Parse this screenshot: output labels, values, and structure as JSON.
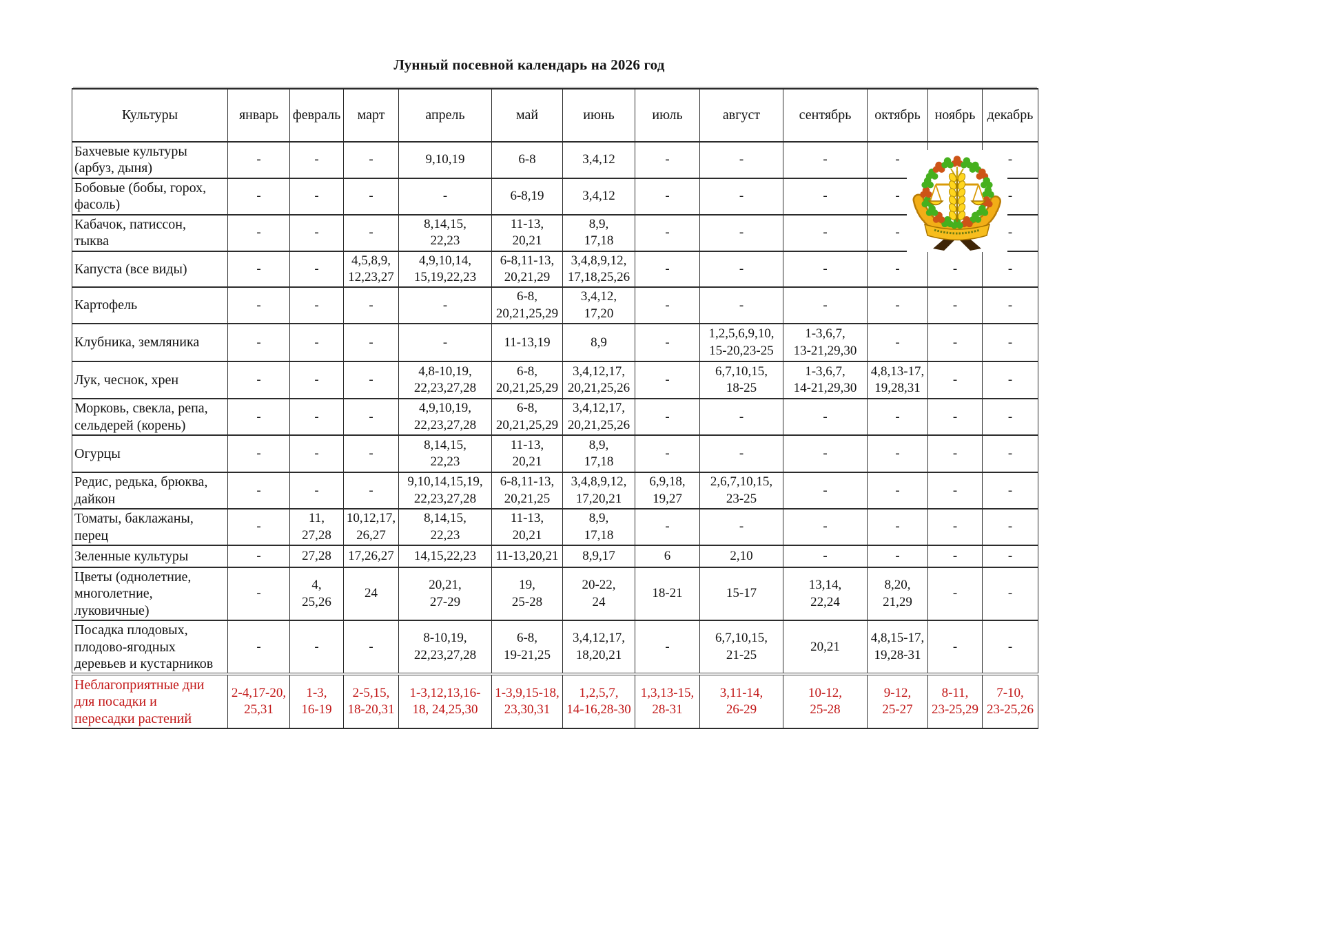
{
  "title": "Лунный посевной календарь на 2026 год",
  "table": {
    "columns": [
      "Культуры",
      "январь",
      "февраль",
      "март",
      "апрель",
      "май",
      "июнь",
      "июль",
      "август",
      "сентябрь",
      "октябрь",
      "ноябрь",
      "декабрь"
    ],
    "rows": [
      {
        "label": "Бахчевые культуры\n(арбуз, дыня)",
        "cells": [
          "-",
          "-",
          "-",
          "9,10,19",
          "6-8",
          "3,4,12",
          "-",
          "-",
          "-",
          "-",
          "-",
          "-"
        ]
      },
      {
        "label": "Бобовые (бобы, горох,\nфасоль)",
        "cells": [
          "-",
          "-",
          "-",
          "-",
          "6-8,19",
          "3,4,12",
          "-",
          "-",
          "-",
          "-",
          "-",
          "-"
        ]
      },
      {
        "label": "Кабачок, патиссон,\nтыква",
        "cells": [
          "-",
          "-",
          "-",
          "8,14,15,\n22,23",
          "11-13,\n20,21",
          "8,9,\n17,18",
          "-",
          "-",
          "-",
          "-",
          "-",
          "-"
        ]
      },
      {
        "label": "Капуста (все виды)",
        "cells": [
          "-",
          "-",
          "4,5,8,9,\n12,23,27",
          "4,9,10,14,\n15,19,22,23",
          "6-8,11-13,\n20,21,29",
          "3,4,8,9,12,\n17,18,25,26",
          "-",
          "-",
          "-",
          "-",
          "-",
          "-"
        ]
      },
      {
        "label": "Картофель",
        "cells": [
          "-",
          "-",
          "-",
          "-",
          "6-8,\n20,21,25,29",
          "3,4,12,\n17,20",
          "-",
          "-",
          "-",
          "-",
          "-",
          "-"
        ]
      },
      {
        "label": "Клубника, земляника",
        "cells": [
          "-",
          "-",
          "-",
          "-",
          "11-13,19",
          "8,9",
          "-",
          "1,2,5,6,9,10,\n15-20,23-25",
          "1-3,6,7,\n13-21,29,30",
          "-",
          "-",
          "-"
        ]
      },
      {
        "label": "Лук, чеснок, хрен",
        "cells": [
          "-",
          "-",
          "-",
          "4,8-10,19,\n22,23,27,28",
          "6-8,\n20,21,25,29",
          "3,4,12,17,\n20,21,25,26",
          "-",
          "6,7,10,15,\n18-25",
          "1-3,6,7,\n14-21,29,30",
          "4,8,13-17,\n19,28,31",
          "-",
          "-"
        ]
      },
      {
        "label": "Морковь, свекла, репа,\nсельдерей (корень)",
        "cells": [
          "-",
          "-",
          "-",
          "4,9,10,19,\n22,23,27,28",
          "6-8,\n20,21,25,29",
          "3,4,12,17,\n20,21,25,26",
          "-",
          "-",
          "-",
          "-",
          "-",
          "-"
        ]
      },
      {
        "label": "Огурцы",
        "cells": [
          "-",
          "-",
          "-",
          "8,14,15,\n22,23",
          "11-13,\n20,21",
          "8,9,\n17,18",
          "-",
          "-",
          "-",
          "-",
          "-",
          "-"
        ]
      },
      {
        "label": "Редис, редька, брюква,\nдайкон",
        "cells": [
          "-",
          "-",
          "-",
          "9,10,14,15,19,\n22,23,27,28",
          "6-8,11-13,\n20,21,25",
          "3,4,8,9,12,\n17,20,21",
          "6,9,18,\n19,27",
          "2,6,7,10,15,\n23-25",
          "-",
          "-",
          "-",
          "-"
        ]
      },
      {
        "label": "Томаты, баклажаны,\nперец",
        "cells": [
          "-",
          "11,\n27,28",
          "10,12,17,\n26,27",
          "8,14,15,\n22,23",
          "11-13,\n20,21",
          "8,9,\n17,18",
          "-",
          "-",
          "-",
          "-",
          "-",
          "-"
        ]
      },
      {
        "label": "Зеленные культуры",
        "cells": [
          "-",
          "27,28",
          "17,26,27",
          "14,15,22,23",
          "11-13,20,21",
          "8,9,17",
          "6",
          "2,10",
          "-",
          "-",
          "-",
          "-"
        ]
      },
      {
        "label": "Цветы (однолетние,\nмноголетние,\nлуковичные)",
        "cells": [
          "-",
          "4,\n25,26",
          "24",
          "20,21,\n27-29",
          "19,\n25-28",
          "20-22,\n24",
          "18-21",
          "15-17",
          "13,14,\n22,24",
          "8,20,\n21,29",
          "-",
          "-"
        ]
      },
      {
        "label": "Посадка плодовых,\nплодово-ягодных\nдеревьев и кустарников",
        "cells": [
          "-",
          "-",
          "-",
          "8-10,19,\n22,23,27,28",
          "6-8,\n19-21,25",
          "3,4,12,17,\n18,20,21",
          "-",
          "6,7,10,15,\n21-25",
          "20,21",
          "4,8,15-17,\n19,28-31",
          "-",
          "-"
        ]
      },
      {
        "label": "Неблагоприятные дни\nдля посадки и\nпересадки растений",
        "highlight": true,
        "cells": [
          "2-4,17-20,\n25,31",
          "1-3,\n16-19",
          "2-5,15,\n18-20,31",
          "1-3,12,13,16-\n18, 24,25,30",
          "1-3,9,15-18,\n23,30,31",
          "1,2,5,7,\n14-16,28-30",
          "1,3,13-15,\n28-31",
          "3,11-14,\n26-29",
          "10-12,\n25-28",
          "9-12,\n25-27",
          "8-11,\n23-25,29",
          "7-10,\n23-25,26"
        ]
      }
    ]
  },
  "colors": {
    "unfavorable_text": "#c21717",
    "logo_gold": "#f2ae17",
    "logo_green": "#46b01e",
    "logo_red_orange": "#cd5417",
    "logo_dark_brown": "#3f2507"
  },
  "logo": {
    "name": "rosselkhozcentr-emblem"
  }
}
